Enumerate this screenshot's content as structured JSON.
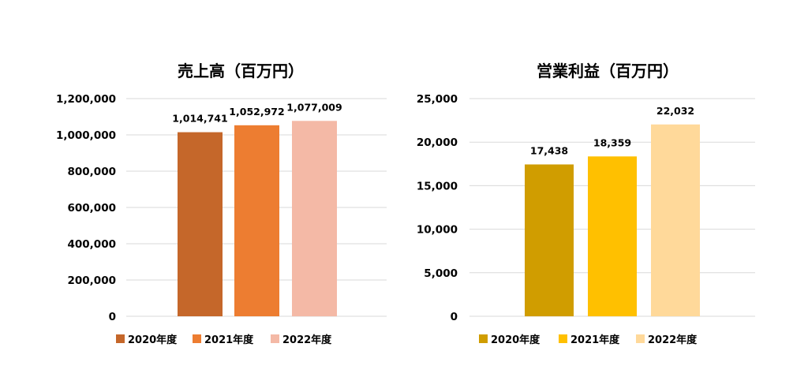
{
  "chart_data": [
    {
      "type": "bar",
      "title": "売上高（百万円）",
      "categories": [
        "2020年度",
        "2021年度",
        "2022年度"
      ],
      "values": [
        1014741,
        1052972,
        1077009
      ],
      "data_labels": [
        "1,014,741",
        "1,052,972",
        "1,077,009"
      ],
      "colors": [
        "#c5672a",
        "#ed7d31",
        "#f4b9a6"
      ],
      "ylim": [
        0,
        1200000
      ],
      "yticks": [
        0,
        200000,
        400000,
        600000,
        800000,
        1000000,
        1200000
      ],
      "ytick_labels": [
        "0",
        "200,000",
        "400,000",
        "600,000",
        "800,000",
        "1,000,000",
        "1,200,000"
      ],
      "grid": true,
      "legend": "bottom"
    },
    {
      "type": "bar",
      "title": "営業利益（百万円）",
      "categories": [
        "2020年度",
        "2021年度",
        "2022年度"
      ],
      "values": [
        17438,
        18359,
        22032
      ],
      "data_labels": [
        "17,438",
        "18,359",
        "22,032"
      ],
      "colors": [
        "#d09d00",
        "#ffc000",
        "#ffd99a"
      ],
      "ylim": [
        0,
        25000
      ],
      "yticks": [
        0,
        5000,
        10000,
        15000,
        20000,
        25000
      ],
      "ytick_labels": [
        "0",
        "5,000",
        "10,000",
        "15,000",
        "20,000",
        "25,000"
      ],
      "grid": true,
      "legend": "bottom"
    }
  ]
}
